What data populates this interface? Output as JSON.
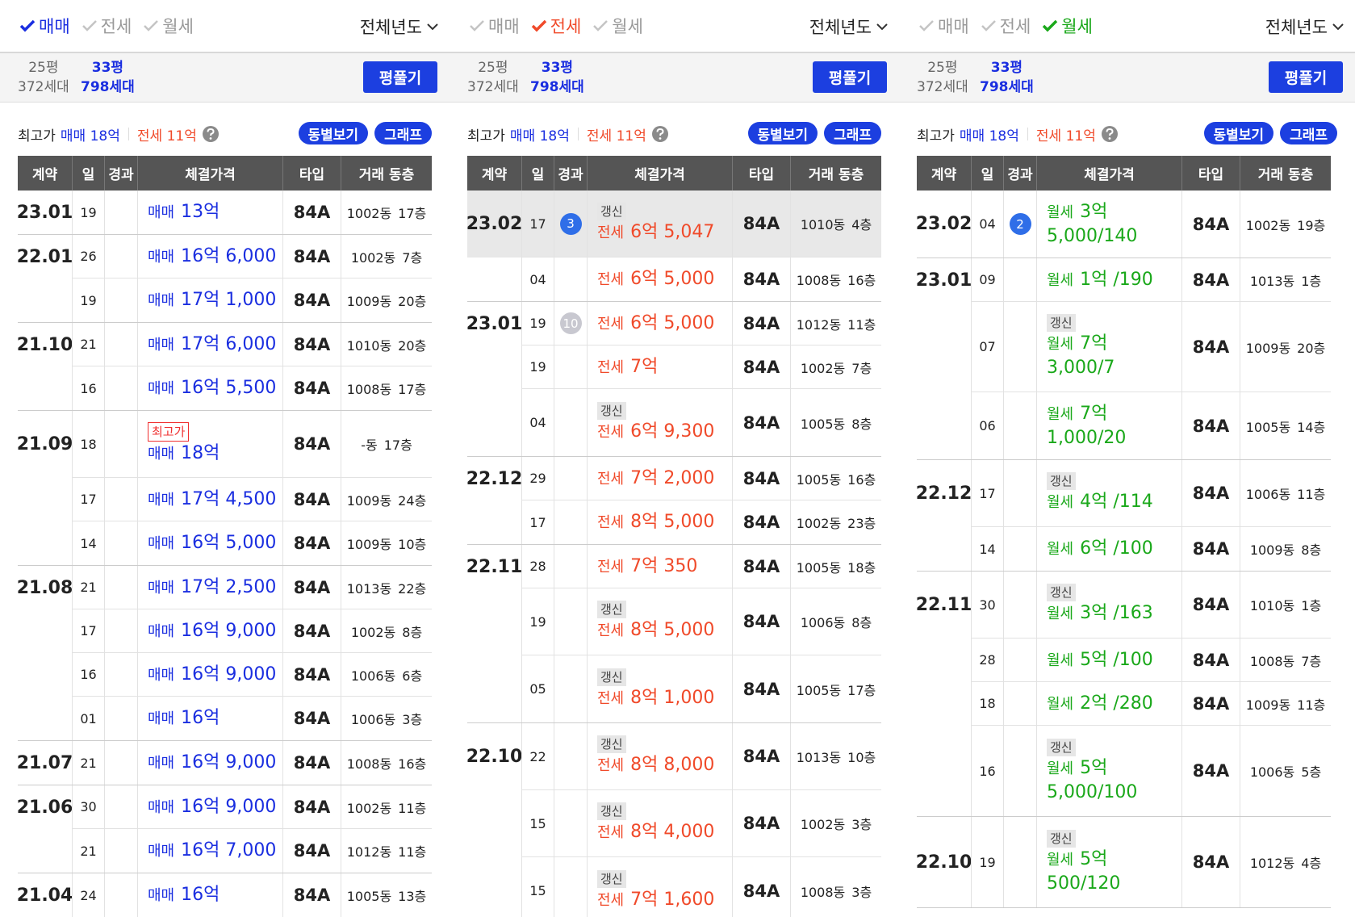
{
  "panels": [
    {
      "tabs": [
        {
          "label": "매매",
          "active": true
        },
        {
          "label": "전세",
          "active": false
        },
        {
          "label": "월세",
          "active": false
        }
      ],
      "year_select": "전체년도",
      "sizes": [
        {
          "area": "25평",
          "units": "372세대",
          "active": false
        },
        {
          "area": "33평",
          "units": "798세대",
          "active": true
        }
      ],
      "button": "평풀기",
      "summary": {
        "label": "최고가",
        "items": [
          "매매 18억",
          "전세 11억"
        ]
      },
      "actions": [
        "동별보기",
        "그래프"
      ],
      "table": {
        "headers": [
          "계약",
          "일",
          "경과",
          "체결가격",
          "타입",
          "거래 동층"
        ],
        "groups": [
          {
            "month": "23.01",
            "rows": [
              {
                "day": "19",
                "kind": "매매",
                "price": "13억",
                "type": "84A",
                "building": "1002동",
                "floor": "17층"
              }
            ]
          },
          {
            "month": "22.01",
            "rows": [
              {
                "day": "26",
                "kind": "매매",
                "price": "16억 6,000",
                "type": "84A",
                "building": "1002동",
                "floor": "7층"
              },
              {
                "day": "19",
                "kind": "매매",
                "price": "17억 1,000",
                "type": "84A",
                "building": "1009동",
                "floor": "20층"
              }
            ]
          },
          {
            "month": "21.10",
            "rows": [
              {
                "day": "21",
                "kind": "매매",
                "price": "17억 6,000",
                "type": "84A",
                "building": "1010동",
                "floor": "20층"
              },
              {
                "day": "16",
                "kind": "매매",
                "price": "16억 5,500",
                "type": "84A",
                "building": "1008동",
                "floor": "17층"
              }
            ]
          },
          {
            "month": "21.09",
            "rows": [
              {
                "day": "18",
                "tag": "최고가",
                "kind": "매매",
                "price": "18억",
                "type": "84A",
                "building": "-동",
                "floor": "17층"
              },
              {
                "day": "17",
                "kind": "매매",
                "price": "17억 4,500",
                "type": "84A",
                "building": "1009동",
                "floor": "24층"
              },
              {
                "day": "14",
                "kind": "매매",
                "price": "16억 5,000",
                "type": "84A",
                "building": "1009동",
                "floor": "10층"
              }
            ]
          },
          {
            "month": "21.08",
            "rows": [
              {
                "day": "21",
                "kind": "매매",
                "price": "17억 2,500",
                "type": "84A",
                "building": "1013동",
                "floor": "22층"
              },
              {
                "day": "17",
                "kind": "매매",
                "price": "16억 9,000",
                "type": "84A",
                "building": "1002동",
                "floor": "8층"
              },
              {
                "day": "16",
                "kind": "매매",
                "price": "16억 9,000",
                "type": "84A",
                "building": "1006동",
                "floor": "6층"
              },
              {
                "day": "01",
                "kind": "매매",
                "price": "16억",
                "type": "84A",
                "building": "1006동",
                "floor": "3층"
              }
            ]
          },
          {
            "month": "21.07",
            "rows": [
              {
                "day": "21",
                "kind": "매매",
                "price": "16억 9,000",
                "type": "84A",
                "building": "1008동",
                "floor": "16층"
              }
            ]
          },
          {
            "month": "21.06",
            "rows": [
              {
                "day": "30",
                "kind": "매매",
                "price": "16억 9,000",
                "type": "84A",
                "building": "1002동",
                "floor": "11층"
              },
              {
                "day": "21",
                "kind": "매매",
                "price": "16억 7,000",
                "type": "84A",
                "building": "1012동",
                "floor": "11층"
              }
            ]
          },
          {
            "month": "21.04",
            "rows": [
              {
                "day": "24",
                "kind": "매매",
                "price": "16억",
                "type": "84A",
                "building": "1005동",
                "floor": "13층"
              }
            ]
          }
        ]
      }
    },
    {
      "tabs": [
        {
          "label": "매매",
          "active": false
        },
        {
          "label": "전세",
          "active": true
        },
        {
          "label": "월세",
          "active": false
        }
      ],
      "year_select": "전체년도",
      "sizes": [
        {
          "area": "25평",
          "units": "372세대",
          "active": false
        },
        {
          "area": "33평",
          "units": "798세대",
          "active": true
        }
      ],
      "button": "평풀기",
      "summary": {
        "label": "최고가",
        "items": [
          "매매 18억",
          "전세 11억"
        ]
      },
      "actions": [
        "동별보기",
        "그래프"
      ],
      "table": {
        "headers": [
          "계약",
          "일",
          "경과",
          "체결가격",
          "타입",
          "거래 동층"
        ],
        "groups": [
          {
            "month": "23.02",
            "rows": [
              {
                "day": "17",
                "elapsed": "3",
                "highlight": true,
                "tag": "갱신",
                "kind": "전세",
                "price": "6억 5,047",
                "type": "84A",
                "building": "1010동",
                "floor": "4층"
              },
              {
                "day": "04",
                "kind": "전세",
                "price": "6억 5,000",
                "type": "84A",
                "building": "1008동",
                "floor": "16층"
              }
            ]
          },
          {
            "month": "23.01",
            "rows": [
              {
                "day": "19",
                "elapsed": "10",
                "elapsed_muted": true,
                "kind": "전세",
                "price": "6억 5,000",
                "type": "84A",
                "building": "1012동",
                "floor": "11층"
              },
              {
                "day": "19",
                "kind": "전세",
                "price": "7억",
                "type": "84A",
                "building": "1002동",
                "floor": "7층"
              },
              {
                "day": "04",
                "tag": "갱신",
                "kind": "전세",
                "price": "6억 9,300",
                "type": "84A",
                "building": "1005동",
                "floor": "8층"
              }
            ]
          },
          {
            "month": "22.12",
            "rows": [
              {
                "day": "29",
                "kind": "전세",
                "price": "7억 2,000",
                "type": "84A",
                "building": "1005동",
                "floor": "16층"
              },
              {
                "day": "17",
                "kind": "전세",
                "price": "8억 5,000",
                "type": "84A",
                "building": "1002동",
                "floor": "23층"
              }
            ]
          },
          {
            "month": "22.11",
            "rows": [
              {
                "day": "28",
                "kind": "전세",
                "price": "7억 350",
                "type": "84A",
                "building": "1005동",
                "floor": "18층"
              },
              {
                "day": "19",
                "tag": "갱신",
                "kind": "전세",
                "price": "8억 5,000",
                "type": "84A",
                "building": "1006동",
                "floor": "8층"
              },
              {
                "day": "05",
                "tag": "갱신",
                "kind": "전세",
                "price": "8억 1,000",
                "type": "84A",
                "building": "1005동",
                "floor": "17층"
              }
            ]
          },
          {
            "month": "22.10",
            "rows": [
              {
                "day": "22",
                "tag": "갱신",
                "kind": "전세",
                "price": "8억 8,000",
                "type": "84A",
                "building": "1013동",
                "floor": "10층"
              },
              {
                "day": "15",
                "tag": "갱신",
                "kind": "전세",
                "price": "8억 4,000",
                "type": "84A",
                "building": "1002동",
                "floor": "3층"
              },
              {
                "day": "15",
                "tag": "갱신",
                "kind": "전세",
                "price": "7억 1,600",
                "type": "84A",
                "building": "1008동",
                "floor": "3층"
              }
            ]
          }
        ]
      }
    },
    {
      "tabs": [
        {
          "label": "매매",
          "active": false
        },
        {
          "label": "전세",
          "active": false
        },
        {
          "label": "월세",
          "active": true
        }
      ],
      "year_select": "전체년도",
      "sizes": [
        {
          "area": "25평",
          "units": "372세대",
          "active": false
        },
        {
          "area": "33평",
          "units": "798세대",
          "active": true
        }
      ],
      "button": "평풀기",
      "summary": {
        "label": "최고가",
        "items": [
          "매매 18억",
          "전세 11억"
        ]
      },
      "actions": [
        "동별보기",
        "그래프"
      ],
      "table": {
        "headers": [
          "계약",
          "일",
          "경과",
          "체결가격",
          "타입",
          "거래 동층"
        ],
        "groups": [
          {
            "month": "23.02",
            "rows": [
              {
                "day": "04",
                "elapsed": "2",
                "kind": "월세",
                "price": "3억",
                "rent": "5,000/140",
                "type": "84A",
                "building": "1002동",
                "floor": "19층"
              }
            ]
          },
          {
            "month": "23.01",
            "rows": [
              {
                "day": "09",
                "kind": "월세",
                "price": "1억 /190",
                "type": "84A",
                "building": "1013동",
                "floor": "1층"
              },
              {
                "day": "07",
                "tag": "갱신",
                "kind": "월세",
                "price": "7억",
                "rent": "3,000/7",
                "type": "84A",
                "building": "1009동",
                "floor": "20층"
              },
              {
                "day": "06",
                "kind": "월세",
                "price": "7억",
                "rent": "1,000/20",
                "type": "84A",
                "building": "1005동",
                "floor": "14층"
              }
            ]
          },
          {
            "month": "22.12",
            "rows": [
              {
                "day": "17",
                "tag": "갱신",
                "kind": "월세",
                "price": "4억 /114",
                "type": "84A",
                "building": "1006동",
                "floor": "11층"
              },
              {
                "day": "14",
                "kind": "월세",
                "price": "6억 /100",
                "type": "84A",
                "building": "1009동",
                "floor": "8층"
              }
            ]
          },
          {
            "month": "22.11",
            "rows": [
              {
                "day": "30",
                "tag": "갱신",
                "kind": "월세",
                "price": "3억 /163",
                "type": "84A",
                "building": "1010동",
                "floor": "1층"
              },
              {
                "day": "28",
                "kind": "월세",
                "price": "5억 /100",
                "type": "84A",
                "building": "1008동",
                "floor": "7층"
              },
              {
                "day": "18",
                "kind": "월세",
                "price": "2억 /280",
                "type": "84A",
                "building": "1009동",
                "floor": "11층"
              },
              {
                "day": "16",
                "tag": "갱신",
                "kind": "월세",
                "price": "5억",
                "rent": "5,000/100",
                "type": "84A",
                "building": "1006동",
                "floor": "5층"
              }
            ]
          },
          {
            "month": "22.10",
            "rows": [
              {
                "day": "19",
                "tag": "갱신",
                "kind": "월세",
                "price": "5억",
                "rent": "500/120",
                "type": "84A",
                "building": "1012동",
                "floor": "4층"
              }
            ]
          }
        ]
      }
    }
  ]
}
